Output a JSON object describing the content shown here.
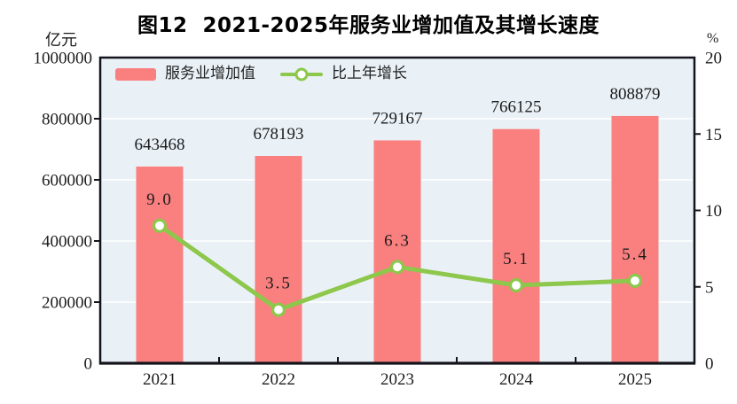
{
  "chart_data": {
    "type": "bar",
    "title": "图12  2021-2025年服务业增加值及其增长速度",
    "categories": [
      "2021",
      "2022",
      "2023",
      "2024",
      "2025"
    ],
    "series": [
      {
        "name": "服务业增加值",
        "type": "bar",
        "axis": "left",
        "color": "#fa7f7f",
        "values": [
          643468,
          678193,
          729167,
          766125,
          808879
        ],
        "labels": [
          "643468",
          "678193",
          "729167",
          "766125",
          "808879"
        ]
      },
      {
        "name": "比上年增长",
        "type": "line",
        "axis": "right",
        "color": "#8dc74b",
        "marker_fill": "#ffffff",
        "values": [
          9.0,
          3.5,
          6.3,
          5.1,
          5.4
        ],
        "labels": [
          "9.0",
          "3.5",
          "6.3",
          "5.1",
          "5.4"
        ]
      }
    ],
    "left_axis": {
      "unit": "亿元",
      "min": 0,
      "max": 1000000,
      "tick_labels": [
        "0",
        "200000",
        "400000",
        "600000",
        "800000",
        "1000000"
      ]
    },
    "right_axis": {
      "unit": "%",
      "min": 0,
      "max": 20,
      "tick_labels": [
        "0",
        "5",
        "10",
        "15",
        "20"
      ]
    },
    "legend_position": "top-left-inside",
    "grid": true,
    "colors": {
      "plot_bg": "#e9f1f7",
      "grid": "#ffffff",
      "axis": "#14141c",
      "text": "#1c1c1c"
    }
  }
}
